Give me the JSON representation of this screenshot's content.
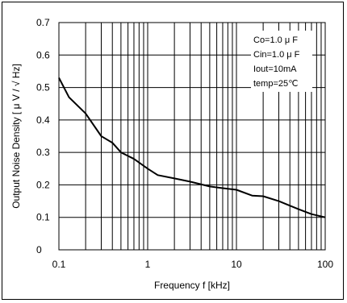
{
  "chart_data": {
    "type": "line",
    "title": "",
    "xlabel": "Frequency f [kHz]",
    "ylabel": "Output Noise Density [ μ V / √ Hz]",
    "x_scale": "log",
    "xlim": [
      0.1,
      100
    ],
    "ylim": [
      0,
      0.7
    ],
    "x_ticks": [
      0.1,
      1,
      10,
      100
    ],
    "x_tick_labels": [
      "0.1",
      "1",
      "10",
      "100"
    ],
    "y_ticks": [
      0,
      0.1,
      0.2,
      0.3,
      0.4,
      0.5,
      0.6,
      0.7
    ],
    "y_tick_labels": [
      "0",
      "0.1",
      "0.2",
      "0.3",
      "0.4",
      "0.5",
      "0.6",
      "0.7"
    ],
    "grid": true,
    "legend_position": "top-right",
    "annotations": [
      "Co=1.0 μ F",
      "Cin=1.0 μ F",
      "Iout=10mA",
      "temp=25℃"
    ],
    "series": [
      {
        "x": [
          0.1,
          0.13,
          0.2,
          0.3,
          0.4,
          0.5,
          0.7,
          1,
          1.3,
          2,
          3,
          5,
          7,
          10,
          15,
          20,
          30,
          50,
          70,
          100
        ],
        "y": [
          0.53,
          0.47,
          0.42,
          0.35,
          0.33,
          0.3,
          0.28,
          0.25,
          0.23,
          0.22,
          0.21,
          0.195,
          0.19,
          0.185,
          0.167,
          0.165,
          0.15,
          0.125,
          0.11,
          0.1
        ]
      }
    ],
    "line_color": "#000000"
  }
}
